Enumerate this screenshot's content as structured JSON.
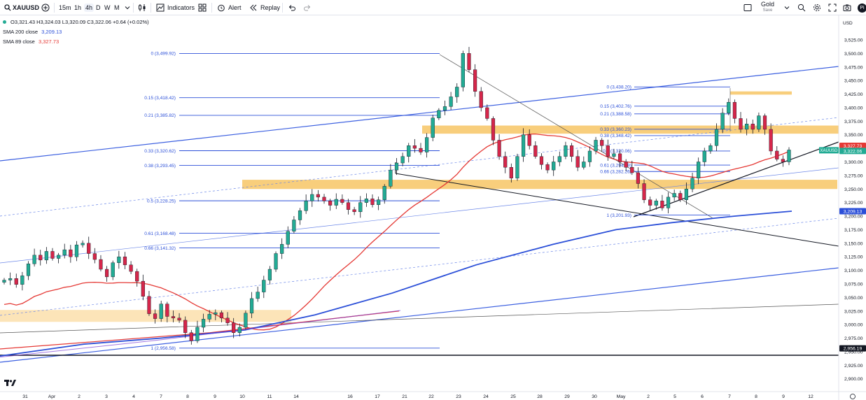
{
  "toolbar": {
    "symbol": "XAUUSD",
    "intervals": [
      "15m",
      "1h",
      "4h",
      "D",
      "W",
      "M"
    ],
    "active_interval": "4h",
    "indicators_label": "Indicators",
    "alert_label": "Alert",
    "replay_label": "Replay",
    "layout_name": "Gold",
    "save_label": "Save",
    "avatar_initial": "Pi"
  },
  "legend": {
    "ohlc": "O3,321.43 H3,324.03 L3,320.09 C3,322.06 +0.64 (+0.02%)",
    "sma200_label": "SMA 200 close",
    "sma200_value": "3,209.13",
    "sma89_label": "SMA 89 close",
    "sma89_value": "3,327.73"
  },
  "colors": {
    "up": "#22ab94",
    "down": "#d5264a",
    "sma89": "#e53935",
    "sma200": "#2b4fd8",
    "channel": "#3b5fe0",
    "fib": "#2b4fd8",
    "zone": "#f5b335"
  },
  "chart_data": {
    "type": "candlestick",
    "symbol": "XAUUSD",
    "interval": "4h",
    "currency": "USD",
    "y_ticks": [
      2900,
      2925,
      2950,
      2975,
      3000,
      3025,
      3050,
      3075,
      3100,
      3125,
      3150,
      3175,
      3200,
      3225,
      3250,
      3275,
      3300,
      3325,
      3350,
      3375,
      3400,
      3425,
      3450,
      3475,
      3500,
      3525
    ],
    "y_tick_labels": [
      "2,900.00",
      "2,925.00",
      "2,950.00",
      "2,975.00",
      "3,000.00",
      "3,025.00",
      "3,050.00",
      "3,075.00",
      "3,100.00",
      "3,125.00",
      "3,150.00",
      "3,175.00",
      "3,200.00",
      "3,225.00",
      "3,250.00",
      "3,275.00",
      "3,300.00",
      "3,325.00",
      "3,350.00",
      "3,375.00",
      "3,400.00",
      "3,425.00",
      "3,450.00",
      "3,475.00",
      "3,500.00",
      "3,525.00"
    ],
    "ylim": [
      2893,
      3553
    ],
    "x_labels": [
      "31",
      "Apr",
      "2",
      "3",
      "4",
      "7",
      "8",
      "9",
      "10",
      "11",
      "14",
      "16",
      "17",
      "21",
      "22",
      "23",
      "24",
      "25",
      "28",
      "29",
      "30",
      "May",
      "2",
      "5",
      "6",
      "7",
      "8",
      "9",
      "12"
    ],
    "price_labels": [
      {
        "text": "3,327.73",
        "value": 3327.73,
        "color": "#e53935"
      },
      {
        "text": "XAUUSD",
        "value": 3322.06,
        "color": "#22ab94"
      },
      {
        "text": "3,322.06",
        "value": 3322.06,
        "color": "#22ab94"
      },
      {
        "text": "3,209.13",
        "value": 3209.13,
        "color": "#2b4fd8"
      },
      {
        "text": "2,956.19",
        "value": 2956.19,
        "color": "#131722"
      }
    ],
    "fib_left": [
      {
        "ratio": "0",
        "label": "0 (3,499.92)",
        "value": 3499.92
      },
      {
        "ratio": "0.15",
        "label": "0.15 (3,418.42)",
        "value": 3418.42
      },
      {
        "ratio": "0.21",
        "label": "0.21 (3,385.82)",
        "value": 3385.82
      },
      {
        "ratio": "0.33",
        "label": "0.33 (3,320.62)",
        "value": 3320.62
      },
      {
        "ratio": "0.38",
        "label": "0.38 (3,293.45)",
        "value": 3293.45
      },
      {
        "ratio": "0.5",
        "label": "0.5 (3,228.25)",
        "value": 3228.25
      },
      {
        "ratio": "0.61",
        "label": "0.61 (3,168.48)",
        "value": 3168.48
      },
      {
        "ratio": "0.66",
        "label": "0.66 (3,141.32)",
        "value": 3141.32
      },
      {
        "ratio": "1",
        "label": "1 (2,956.58)",
        "value": 2956.58
      }
    ],
    "fib_right": [
      {
        "ratio": "0",
        "label": "0 (3,438.20)",
        "value": 3438.2
      },
      {
        "ratio": "0.15",
        "label": "0.15 (3,402.76)",
        "value": 3402.76
      },
      {
        "ratio": "0.21",
        "label": "0.21 (3,388.58)",
        "value": 3388.58
      },
      {
        "ratio": "0.33",
        "label": "0.33 (3,360.23)",
        "value": 3360.23
      },
      {
        "ratio": "0.38",
        "label": "0.38 (3,348.42)",
        "value": 3348.42
      },
      {
        "ratio": "0.5",
        "label": "0.5 (3,320.06)",
        "value": 3320.06
      },
      {
        "ratio": "0.61",
        "label": "0.61 (3,294.09)",
        "value": 3294.09
      },
      {
        "ratio": "0.66",
        "label": "0.66 (3,282.26)",
        "value": 3282.26
      },
      {
        "ratio": "1",
        "label": "1 (3,201.93)",
        "value": 3201.93
      }
    ],
    "zones": [
      {
        "from": 3005,
        "to": 3027
      },
      {
        "from": 3250,
        "to": 3267
      },
      {
        "from": 3352,
        "to": 3367
      },
      {
        "from": 3424,
        "to": 3430
      }
    ],
    "ohlc_close_series": [
      3082,
      3085,
      3074,
      3090,
      3112,
      3128,
      3119,
      3135,
      3122,
      3128,
      3138,
      3125,
      3147,
      3150,
      3131,
      3120,
      3102,
      3088,
      3114,
      3125,
      3110,
      3098,
      3080,
      3052,
      3020,
      3011,
      3038,
      3015,
      3012,
      3008,
      2985,
      2970,
      2995,
      3010,
      3019,
      3022,
      3012,
      3003,
      2985,
      2995,
      3021,
      3048,
      3060,
      3082,
      3102,
      3131,
      3148,
      3172,
      3193,
      3210,
      3228,
      3240,
      3235,
      3228,
      3220,
      3231,
      3225,
      3212,
      3208,
      3225,
      3232,
      3221,
      3230,
      3255,
      3285,
      3298,
      3310,
      3330,
      3325,
      3318,
      3345,
      3381,
      3395,
      3402,
      3420,
      3438,
      3500,
      3470,
      3430,
      3400,
      3380,
      3340,
      3310,
      3290,
      3270,
      3310,
      3350,
      3330,
      3310,
      3295,
      3285,
      3300,
      3310,
      3330,
      3310,
      3290,
      3300,
      3320,
      3340,
      3330,
      3310,
      3315,
      3300,
      3290,
      3280,
      3260,
      3230,
      3220,
      3228,
      3215,
      3235,
      3242,
      3230,
      3250,
      3270,
      3300,
      3320,
      3330,
      3360,
      3390,
      3410,
      3380,
      3360,
      3370,
      3360,
      3385,
      3360,
      3320,
      3305,
      3300,
      3322
    ]
  }
}
